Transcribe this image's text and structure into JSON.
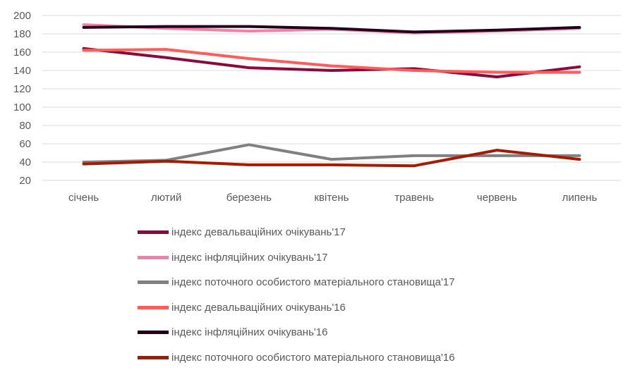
{
  "chart_data": {
    "type": "line",
    "title": "",
    "xlabel": "",
    "ylabel": "",
    "categories": [
      "січень",
      "лютий",
      "березень",
      "квітень",
      "травень",
      "червень",
      "липень"
    ],
    "ylim": [
      20,
      200
    ],
    "yticks": [
      20,
      40,
      60,
      80,
      100,
      120,
      140,
      160,
      180,
      200
    ],
    "grid": true,
    "legend_position": "bottom",
    "series": [
      {
        "name": "індекс девальваційних очікувань'17",
        "color": "#8b0a3c",
        "values": [
          164,
          154,
          143,
          140,
          142,
          133,
          144
        ]
      },
      {
        "name": "індекс інфляційних очікувань'17",
        "color": "#f47fa8",
        "values": [
          190,
          186,
          183,
          185,
          181,
          183,
          186
        ]
      },
      {
        "name": "індекс поточного особистого матеріального становища'17",
        "color": "#808080",
        "values": [
          40,
          42,
          59,
          43,
          47,
          47,
          47
        ]
      },
      {
        "name": "індекс девальваційних очікувань'16",
        "color": "#ff5c5c",
        "values": [
          162,
          163,
          153,
          145,
          140,
          138,
          138
        ]
      },
      {
        "name": "індекс інфляційних очікувань'16",
        "color": "#22001a",
        "values": [
          187,
          188,
          188,
          186,
          182,
          184,
          187
        ]
      },
      {
        "name": "індекс поточного особистого матеріального становища'16",
        "color": "#a61b00",
        "values": [
          38,
          41,
          37,
          37,
          36,
          53,
          43
        ]
      }
    ]
  }
}
